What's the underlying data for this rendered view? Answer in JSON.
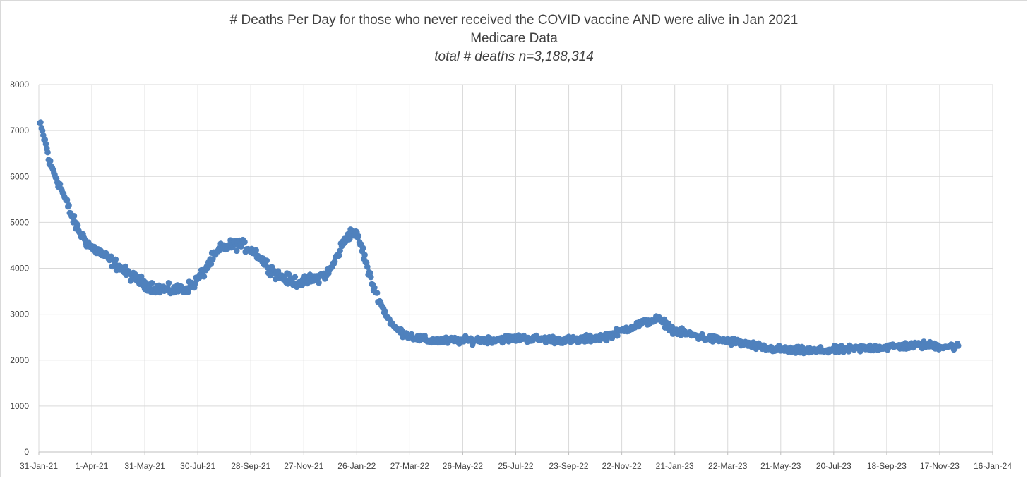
{
  "chart_data": {
    "type": "scatter",
    "title": "# Deaths Per Day for those who never received the COVID vaccine AND were alive in Jan 2021",
    "subtitle": "Medicare Data",
    "annotation": "total # deaths n=3,188,314",
    "xlabel": "",
    "ylabel": "",
    "ylim": [
      0,
      8000
    ],
    "yticks": [
      0,
      1000,
      2000,
      3000,
      4000,
      5000,
      6000,
      7000,
      8000
    ],
    "xlim": [
      "2021-01-31",
      "2024-01-16"
    ],
    "xtick_labels": [
      "31-Jan-21",
      "1-Apr-21",
      "31-May-21",
      "30-Jul-21",
      "28-Sep-21",
      "27-Nov-21",
      "26-Jan-22",
      "27-Mar-22",
      "26-May-22",
      "25-Jul-22",
      "23-Sep-22",
      "22-Nov-22",
      "21-Jan-23",
      "22-Mar-23",
      "21-May-23",
      "20-Jul-23",
      "18-Sep-23",
      "17-Nov-23",
      "16-Jan-24"
    ],
    "xtick_dates": [
      "2021-01-31",
      "2021-04-01",
      "2021-05-31",
      "2021-07-30",
      "2021-09-28",
      "2021-11-27",
      "2022-01-26",
      "2022-03-27",
      "2022-05-26",
      "2022-07-25",
      "2022-09-23",
      "2022-11-22",
      "2023-01-21",
      "2023-03-22",
      "2023-05-21",
      "2023-07-20",
      "2023-09-18",
      "2023-11-17",
      "2024-01-16"
    ],
    "grid": true,
    "marker_color": "#4f81bd",
    "series": [
      {
        "name": "",
        "x_start": "2021-02-01",
        "x_end": "2023-12-08",
        "trend": [
          [
            "2021-02-01",
            7150
          ],
          [
            "2021-02-04",
            6950
          ],
          [
            "2021-02-08",
            6700
          ],
          [
            "2021-02-12",
            6300
          ],
          [
            "2021-02-18",
            6050
          ],
          [
            "2021-02-25",
            5750
          ],
          [
            "2021-03-04",
            5400
          ],
          [
            "2021-03-11",
            5050
          ],
          [
            "2021-03-18",
            4800
          ],
          [
            "2021-03-25",
            4600
          ],
          [
            "2021-04-01",
            4450
          ],
          [
            "2021-04-10",
            4350
          ],
          [
            "2021-04-20",
            4200
          ],
          [
            "2021-05-01",
            4050
          ],
          [
            "2021-05-10",
            3900
          ],
          [
            "2021-05-20",
            3780
          ],
          [
            "2021-06-01",
            3650
          ],
          [
            "2021-06-15",
            3560
          ],
          [
            "2021-07-01",
            3520
          ],
          [
            "2021-07-15",
            3550
          ],
          [
            "2021-07-25",
            3650
          ],
          [
            "2021-08-05",
            3900
          ],
          [
            "2021-08-15",
            4200
          ],
          [
            "2021-08-25",
            4420
          ],
          [
            "2021-09-05",
            4500
          ],
          [
            "2021-09-15",
            4520
          ],
          [
            "2021-09-25",
            4450
          ],
          [
            "2021-10-05",
            4320
          ],
          [
            "2021-10-15",
            4100
          ],
          [
            "2021-10-25",
            3900
          ],
          [
            "2021-11-05",
            3780
          ],
          [
            "2021-11-15",
            3720
          ],
          [
            "2021-11-25",
            3700
          ],
          [
            "2021-12-05",
            3750
          ],
          [
            "2021-12-15",
            3820
          ],
          [
            "2021-12-25",
            3900
          ],
          [
            "2022-01-01",
            4150
          ],
          [
            "2022-01-08",
            4450
          ],
          [
            "2022-01-15",
            4700
          ],
          [
            "2022-01-22",
            4800
          ],
          [
            "2022-01-28",
            4650
          ],
          [
            "2022-02-03",
            4300
          ],
          [
            "2022-02-10",
            3800
          ],
          [
            "2022-02-17",
            3450
          ],
          [
            "2022-02-24",
            3150
          ],
          [
            "2022-03-03",
            2900
          ],
          [
            "2022-03-10",
            2700
          ],
          [
            "2022-03-20",
            2580
          ],
          [
            "2022-04-01",
            2500
          ],
          [
            "2022-04-15",
            2430
          ],
          [
            "2022-05-01",
            2420
          ],
          [
            "2022-06-01",
            2430
          ],
          [
            "2022-07-01",
            2450
          ],
          [
            "2022-08-01",
            2480
          ],
          [
            "2022-09-01",
            2450
          ],
          [
            "2022-10-01",
            2430
          ],
          [
            "2022-10-20",
            2480
          ],
          [
            "2022-11-05",
            2520
          ],
          [
            "2022-11-20",
            2620
          ],
          [
            "2022-12-05",
            2740
          ],
          [
            "2022-12-20",
            2830
          ],
          [
            "2023-01-01",
            2900
          ],
          [
            "2023-01-10",
            2800
          ],
          [
            "2023-01-20",
            2650
          ],
          [
            "2023-02-01",
            2580
          ],
          [
            "2023-03-01",
            2470
          ],
          [
            "2023-04-01",
            2390
          ],
          [
            "2023-05-01",
            2270
          ],
          [
            "2023-06-01",
            2210
          ],
          [
            "2023-07-01",
            2200
          ],
          [
            "2023-08-01",
            2230
          ],
          [
            "2023-09-01",
            2270
          ],
          [
            "2023-10-01",
            2300
          ],
          [
            "2023-11-01",
            2330
          ],
          [
            "2023-11-20",
            2300
          ],
          [
            "2023-12-08",
            2300
          ]
        ],
        "spread": 75
      }
    ]
  }
}
